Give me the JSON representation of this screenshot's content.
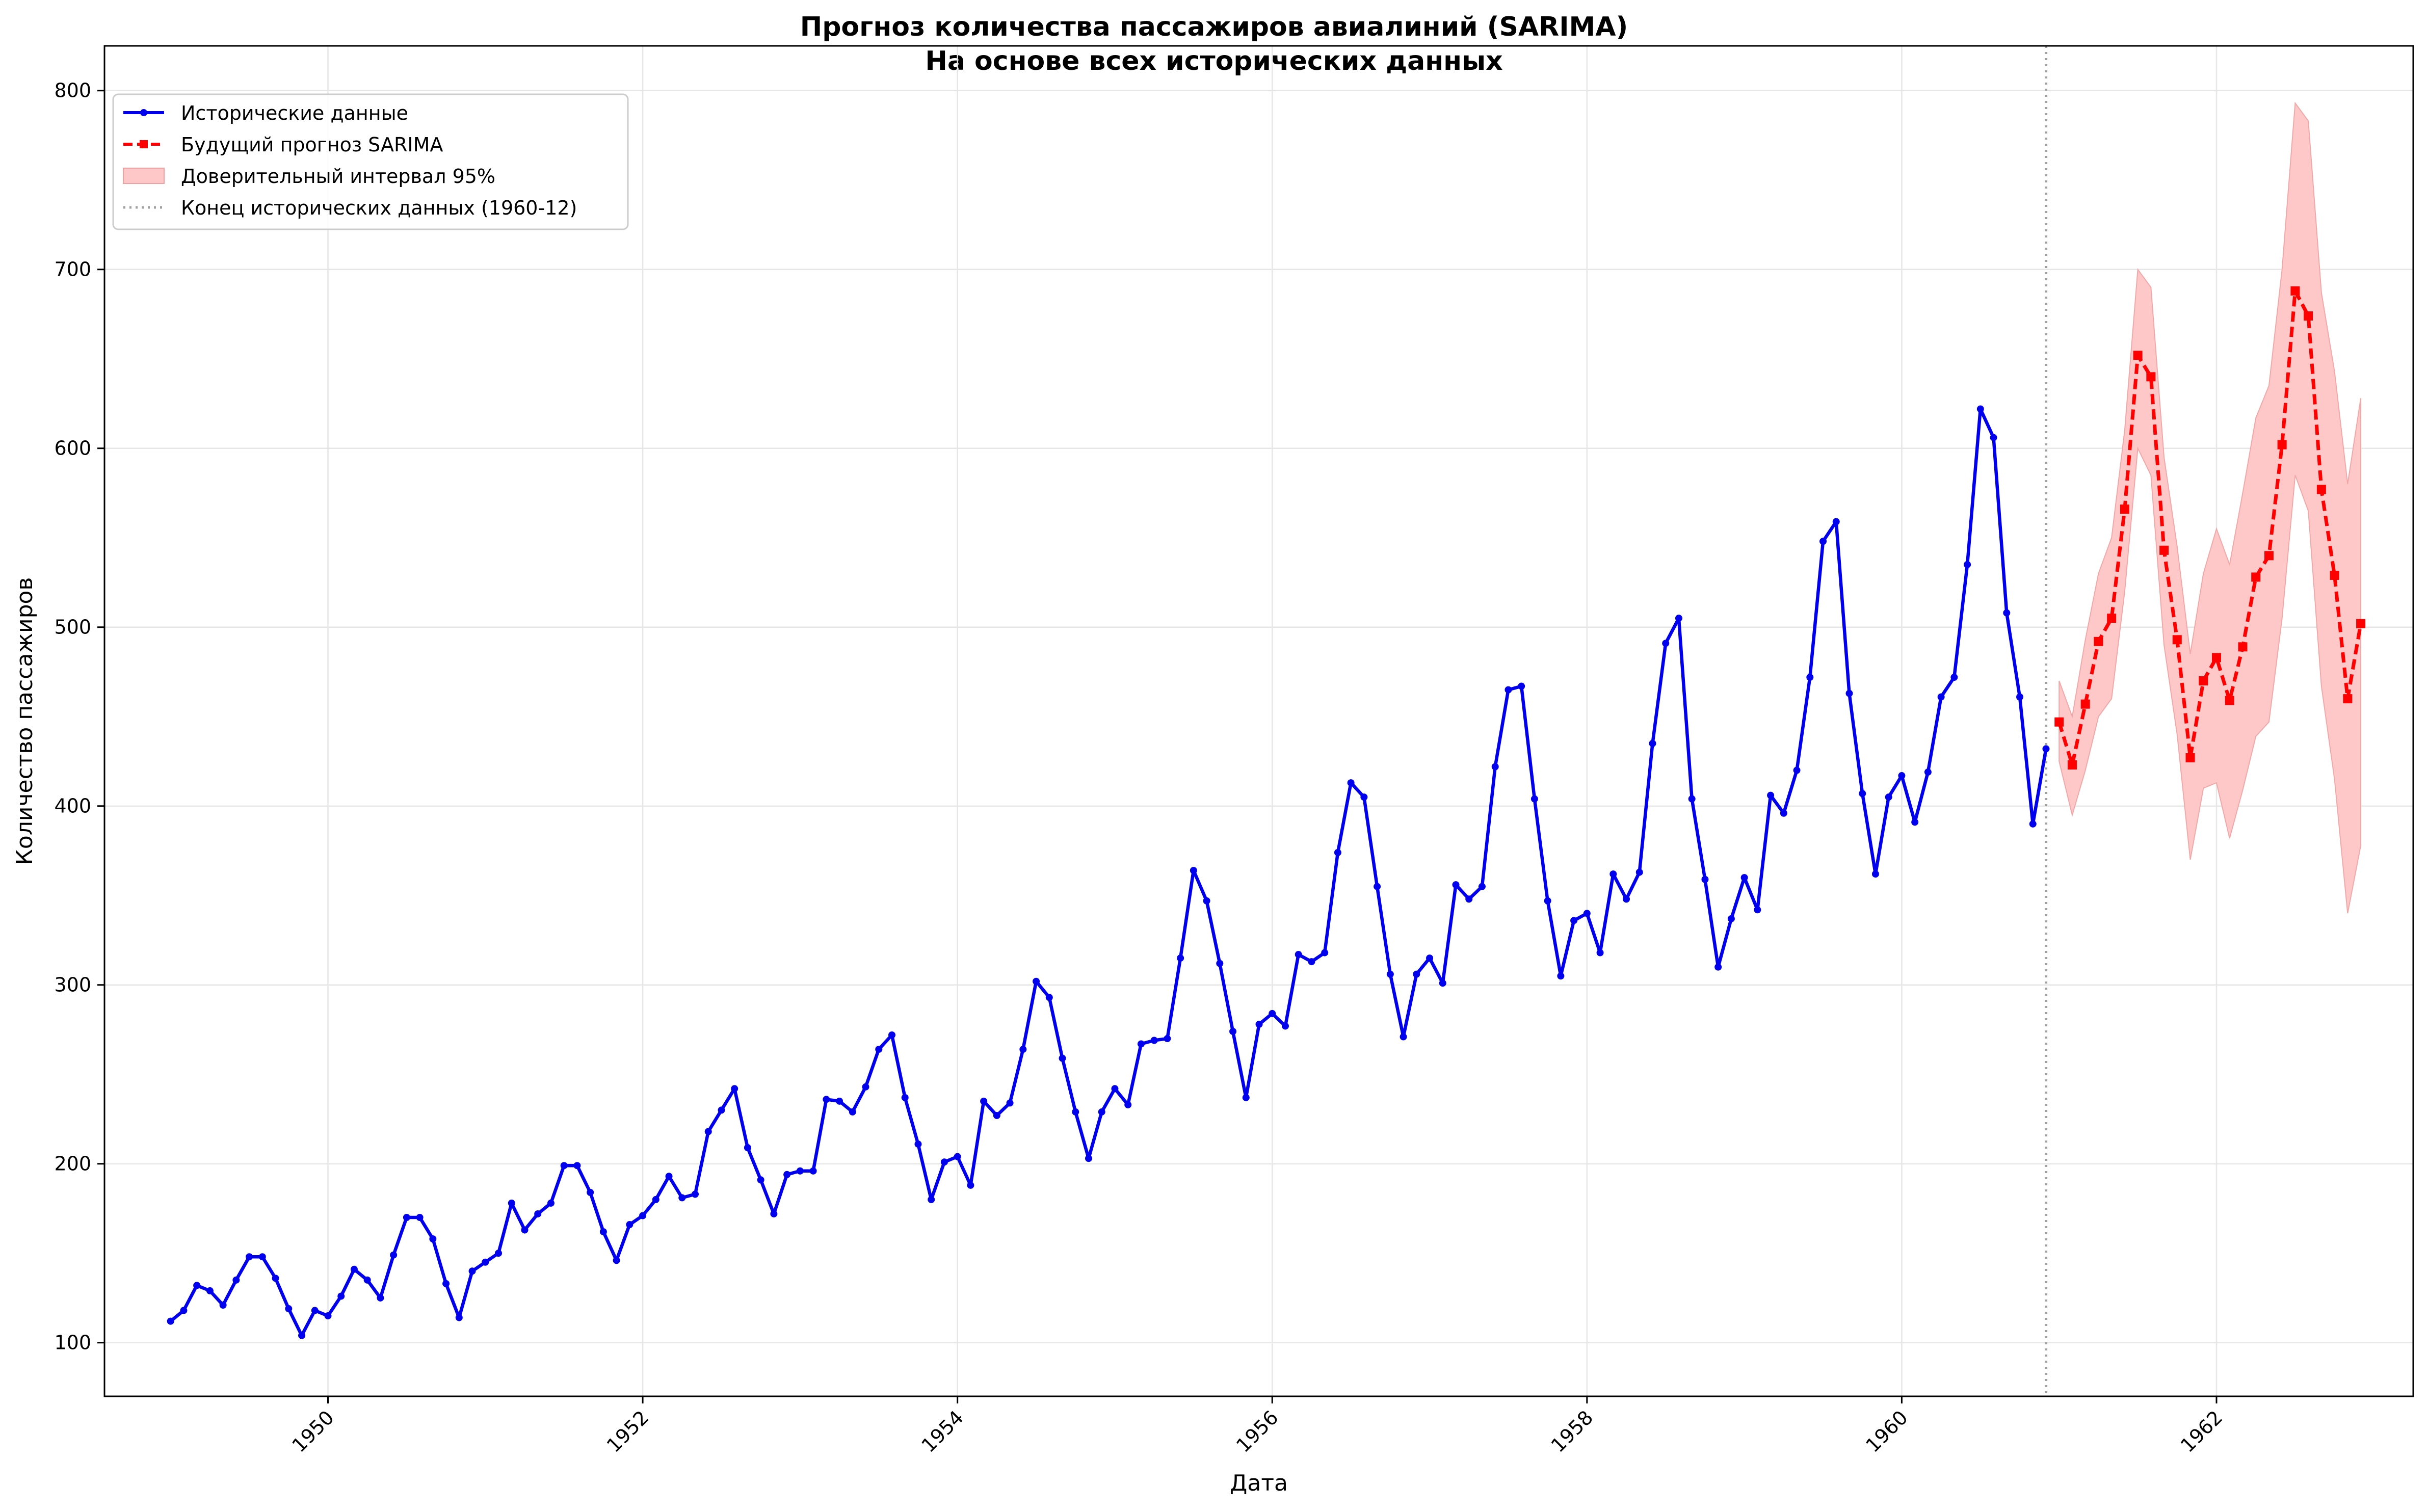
{
  "chart_data": {
    "type": "line",
    "title": "Прогноз количества пассажиров авиалиний (SARIMA)",
    "subtitle": "На основе всех исторических данных",
    "xlabel": "Дата",
    "ylabel": "Количество пассажиров",
    "xlim": [
      1948.58,
      1963.25
    ],
    "ylim": [
      70,
      825
    ],
    "x_ticks": [
      {
        "value": 1950,
        "label": "1950"
      },
      {
        "value": 1952,
        "label": "1952"
      },
      {
        "value": 1954,
        "label": "1954"
      },
      {
        "value": 1956,
        "label": "1956"
      },
      {
        "value": 1958,
        "label": "1958"
      },
      {
        "value": 1960,
        "label": "1960"
      },
      {
        "value": 1962,
        "label": "1962"
      }
    ],
    "y_ticks": [
      {
        "value": 100,
        "label": "100"
      },
      {
        "value": 200,
        "label": "200"
      },
      {
        "value": 300,
        "label": "300"
      },
      {
        "value": 400,
        "label": "400"
      },
      {
        "value": 500,
        "label": "500"
      },
      {
        "value": 600,
        "label": "600"
      },
      {
        "value": 700,
        "label": "700"
      },
      {
        "value": 800,
        "label": "800"
      }
    ],
    "grid": true,
    "legend_position": "top-left",
    "historical": {
      "name": "Исторические данные",
      "color": "#0000ee",
      "start": "1949-01",
      "values": [
        112,
        118,
        132,
        129,
        121,
        135,
        148,
        148,
        136,
        119,
        104,
        118,
        115,
        126,
        141,
        135,
        125,
        149,
        170,
        170,
        158,
        133,
        114,
        140,
        145,
        150,
        178,
        163,
        172,
        178,
        199,
        199,
        184,
        162,
        146,
        166,
        171,
        180,
        193,
        181,
        183,
        218,
        230,
        242,
        209,
        191,
        172,
        194,
        196,
        196,
        236,
        235,
        229,
        243,
        264,
        272,
        237,
        211,
        180,
        201,
        204,
        188,
        235,
        227,
        234,
        264,
        302,
        293,
        259,
        229,
        203,
        229,
        242,
        233,
        267,
        269,
        270,
        315,
        364,
        347,
        312,
        274,
        237,
        278,
        284,
        277,
        317,
        313,
        318,
        374,
        413,
        405,
        355,
        306,
        271,
        306,
        315,
        301,
        356,
        348,
        355,
        422,
        465,
        467,
        404,
        347,
        305,
        336,
        340,
        318,
        362,
        348,
        363,
        435,
        491,
        505,
        404,
        359,
        310,
        337,
        360,
        342,
        406,
        396,
        420,
        472,
        548,
        559,
        463,
        407,
        362,
        405,
        417,
        391,
        419,
        461,
        472,
        535,
        622,
        606,
        508,
        461,
        390,
        432
      ]
    },
    "forecast": {
      "name": "Будущий прогноз SARIMA",
      "color": "#ff0000",
      "start": "1961-01",
      "values": [
        447,
        423,
        457,
        492,
        505,
        566,
        652,
        640,
        543,
        493,
        427,
        470,
        483,
        459,
        489,
        528,
        540,
        602,
        688,
        674,
        577,
        529,
        460,
        502
      ],
      "lower": [
        425,
        395,
        420,
        450,
        460,
        520,
        600,
        585,
        490,
        440,
        370,
        410,
        413,
        382,
        409,
        439,
        447,
        505,
        585,
        565,
        467,
        415,
        340,
        378
      ],
      "upper": [
        470,
        450,
        493,
        530,
        550,
        610,
        700,
        690,
        595,
        545,
        485,
        530,
        555,
        535,
        575,
        617,
        635,
        700,
        793,
        783,
        687,
        643,
        580,
        628
      ]
    },
    "confidence_interval": {
      "name": "Доверительный интервал 95%",
      "color": "#ffc8c8"
    },
    "end_marker": {
      "name": "Конец исторических данных (1960-12)",
      "x": 1960.917,
      "color": "#a0a0a0"
    }
  }
}
